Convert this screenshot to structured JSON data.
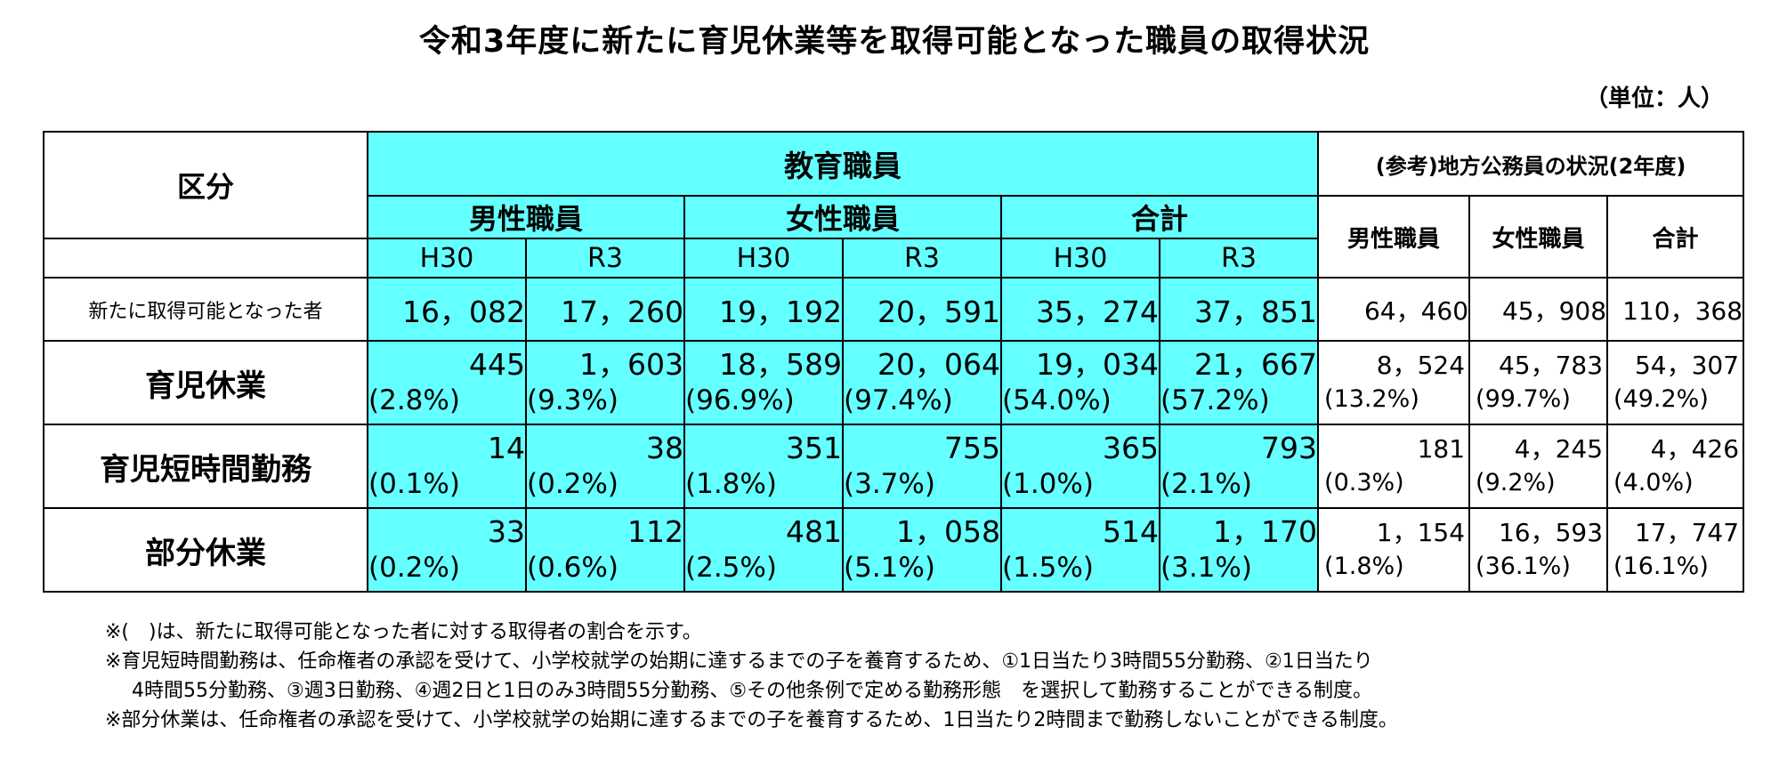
{
  "title": "令和3年度に新たに育児休業等を取得可能となった職員の取得状況",
  "unit": "（単位：人）",
  "table": {
    "header": {
      "kubun": "区分",
      "kyoiku": "教育職員",
      "sanko": "(参考)地方公務員の状況(2年度)",
      "groups": [
        "男性職員",
        "女性職員",
        "合計"
      ],
      "years": [
        "H30",
        "R3",
        "H30",
        "R3",
        "H30",
        "R3"
      ],
      "ref_cols": [
        "男性職員",
        "女性職員",
        "合計"
      ]
    },
    "rows": [
      {
        "label": "新たに取得可能となった者",
        "values": [
          "16，082",
          "17，260",
          "19，192",
          "20，591",
          "35，274",
          "37，851"
        ],
        "ref_values": [
          "64，460",
          "45，908",
          "110，368"
        ]
      },
      {
        "label": "育児休業",
        "values": [
          "445",
          "1，603",
          "18，589",
          "20，064",
          "19，034",
          "21，667"
        ],
        "pcts": [
          "(2.8%)",
          "(9.3%)",
          "(96.9%)",
          "(97.4%)",
          "(54.0%)",
          "(57.2%)"
        ],
        "ref_values": [
          "8，524",
          "45，783",
          "54，307"
        ],
        "ref_pcts": [
          "(13.2%)",
          "(99.7%)",
          "(49.2%)"
        ]
      },
      {
        "label": "育児短時間勤務",
        "values": [
          "14",
          "38",
          "351",
          "755",
          "365",
          "793"
        ],
        "pcts": [
          "(0.1%)",
          "(0.2%)",
          "(1.8%)",
          "(3.7%)",
          "(1.0%)",
          "(2.1%)"
        ],
        "ref_values": [
          "181",
          "4，245",
          "4，426"
        ],
        "ref_pcts": [
          "(0.3%)",
          "(9.2%)",
          "(4.0%)"
        ]
      },
      {
        "label": "部分休業",
        "values": [
          "33",
          "112",
          "481",
          "1，058",
          "514",
          "1，170"
        ],
        "pcts": [
          "(0.2%)",
          "(0.6%)",
          "(2.5%)",
          "(5.1%)",
          "(1.5%)",
          "(3.1%)"
        ],
        "ref_values": [
          "1，154",
          "16，593",
          "17，747"
        ],
        "ref_pcts": [
          "(1.8%)",
          "(36.1%)",
          "(16.1%)"
        ]
      }
    ]
  },
  "notes": [
    "※(　)は、新たに取得可能となった者に対する取得者の割合を示す。",
    "※育児短時間勤務は、任命権者の承認を受けて、小学校就学の始期に達するまでの子を養育するため、①1日当たり3時間55分勤務、②1日当たり",
    "4時間55分勤務、③週3日勤務、④週2日と1日のみ3時間55分勤務、⑤その他条例で定める勤務形態　を選択して勤務することができる制度。",
    "※部分休業は、任命権者の承認を受けて、小学校就学の始期に達するまでの子を養育するため、1日当たり2時間まで勤務しないことができる制度。"
  ],
  "colors": {
    "highlight": "#64FFFF",
    "border": "#000000"
  }
}
